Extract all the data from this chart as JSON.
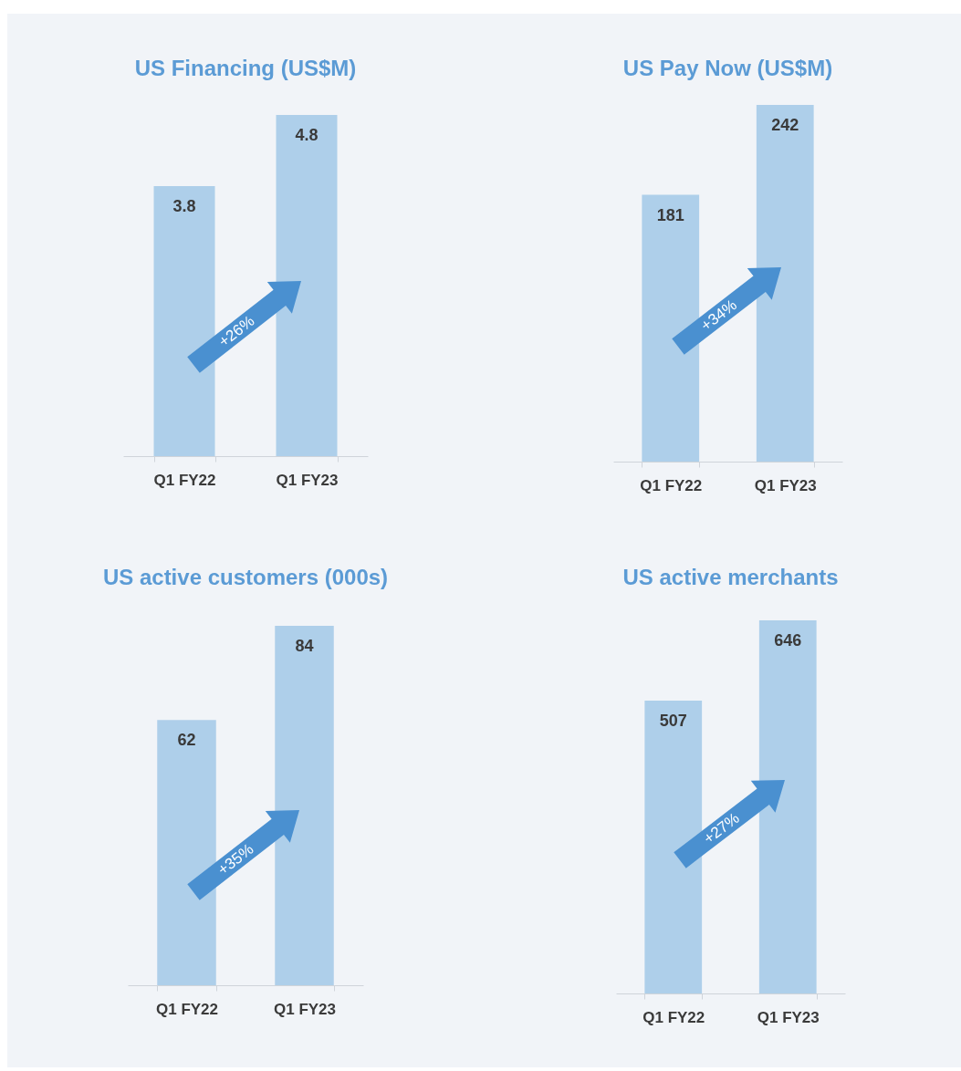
{
  "chart_data": [
    {
      "type": "bar",
      "title": "US Financing (US$M)",
      "categories": [
        "Q1 FY22",
        "Q1 FY23"
      ],
      "values": [
        3.8,
        4.8
      ],
      "color": "#aecfea",
      "data_labels": true,
      "annotations": [
        "+26%"
      ]
    },
    {
      "type": "bar",
      "title": "US Pay Now (US$M)",
      "categories": [
        "Q1 FY22",
        "Q1 FY23"
      ],
      "values": [
        181,
        242
      ],
      "color": "#aecfea",
      "data_labels": true,
      "annotations": [
        "+34%"
      ]
    },
    {
      "type": "bar",
      "title": "US active customers (000s)",
      "categories": [
        "Q1 FY22",
        "Q1 FY23"
      ],
      "values": [
        62,
        84
      ],
      "color": "#aecfea",
      "data_labels": true,
      "annotations": [
        "+35%"
      ]
    },
    {
      "type": "bar",
      "title": "US active merchants",
      "categories": [
        "Q1 FY22",
        "Q1 FY23"
      ],
      "values": [
        507,
        646
      ],
      "color": "#aecfea",
      "data_labels": true,
      "annotations": [
        "+27%"
      ]
    }
  ]
}
